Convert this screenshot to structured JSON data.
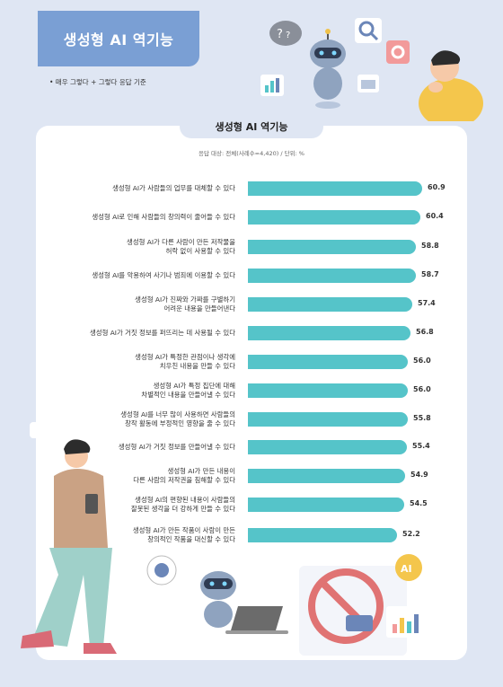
{
  "header": {
    "title": "생성형 AI 역기능",
    "note": "• 매우 그렇다 + 그렇다 응답 기준"
  },
  "card": {
    "title": "생성형 AI 역기능",
    "subtitle": "응답 대상: 전체(사례수=4,420) / 단위: %"
  },
  "chart_data": {
    "type": "bar",
    "orientation": "horizontal",
    "categories": [
      [
        "생성형 AI가 사람들의 업무를 대체할 수 있다"
      ],
      [
        "생성형 AI로 인해 사람들의 창의력이 줄어들 수 있다"
      ],
      [
        "생성형 AI가 다른 사람이 만든 저작물을",
        "허락 없이 사용할 수 있다"
      ],
      [
        "생성형 AI를 악용하여 사기나 범죄에 이용할 수 있다"
      ],
      [
        "생성형 AI가 진짜와 가짜를 구별하기",
        "어려운 내용을 만들어낸다"
      ],
      [
        "생성형 AI가 거짓 정보를 퍼뜨리는 데 사용될 수 있다"
      ],
      [
        "생성형 AI가 특정한 관점이나 생각에",
        "치우친 내용을 만들 수 있다"
      ],
      [
        "생성형 AI가 특정 집단에 대해",
        "차별적인 내용을 만들어낼 수 있다"
      ],
      [
        "생성형 AI를 너무 많이 사용하면 사람들의",
        "창작 활동에 부정적인 영향을 줄 수 있다"
      ],
      [
        "생성형 AI가 거짓 정보를 만들어낼 수 있다"
      ],
      [
        "생성형 AI가 만든 내용이",
        "다른 사람의 저작권을 침해할 수 있다"
      ],
      [
        "생성형 AI의 편향된 내용이 사람들의",
        "잘못된 생각을 더 강하게 만들 수 있다"
      ],
      [
        "생성형 AI가 만든 작품이 사람이 만든",
        "창의적인 작품을 대신할 수 있다"
      ]
    ],
    "values": [
      "60.9",
      "60.4",
      "58.8",
      "58.7",
      "57.4",
      "56.8",
      "56.0",
      "56.0",
      "55.8",
      "55.4",
      "54.9",
      "54.5",
      "52.2"
    ],
    "colors": {
      "bar": "#55c4c9"
    }
  }
}
